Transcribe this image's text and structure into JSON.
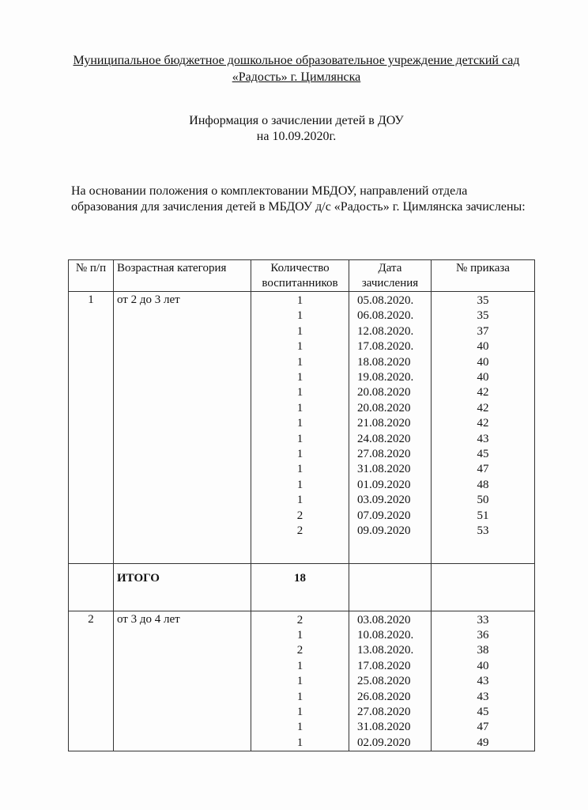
{
  "header": {
    "organization": "Муниципальное бюджетное дошкольное образовательное учреждение  детский сад «Радость» г. Цимлянска",
    "title_line1": "Информация о зачислении детей  в ДОУ",
    "title_line2": "на 10.09.2020г.",
    "intro": "На основании положения о комплектовании МБДОУ,  направлений  отдела образования для зачисления детей в МБДОУ д/с «Радость» г. Цимлянска зачислены:"
  },
  "table": {
    "columns": [
      "№ п/п",
      "Возрастная категория",
      "Количество воспитанников",
      "Дата зачисления",
      "№ приказа"
    ],
    "groups": [
      {
        "num": "1",
        "category": "от 2 до 3 лет",
        "counts": [
          "1",
          "1",
          "1",
          "1",
          "1",
          "1",
          "1",
          "1",
          "1",
          "1",
          "1",
          "1",
          "1",
          "1",
          "2",
          "2"
        ],
        "dates": [
          "05.08.2020.",
          "06.08.2020.",
          "12.08.2020.",
          "17.08.2020.",
          "18.08.2020",
          "19.08.2020.",
          "20.08.2020",
          "20.08.2020",
          "21.08.2020",
          "24.08.2020",
          "27.08.2020",
          "31.08.2020",
          "01.09.2020",
          "03.09.2020",
          "07.09.2020",
          "09.09.2020"
        ],
        "orders": [
          "35",
          "35",
          "37",
          "40",
          "40",
          "40",
          "42",
          "42",
          "42",
          "43",
          "45",
          "47",
          "48",
          "50",
          "51",
          "53"
        ]
      },
      {
        "num": "2",
        "category": "от 3 до 4 лет",
        "counts": [
          "2",
          "1",
          "2",
          "1",
          "1",
          "1",
          "1",
          "1",
          "1"
        ],
        "dates": [
          "03.08.2020",
          "10.08.2020.",
          "13.08.2020.",
          "17.08.2020",
          "25.08.2020",
          "26.08.2020",
          "27.08.2020",
          "31.08.2020",
          "02.09.2020"
        ],
        "orders": [
          "33",
          "36",
          "38",
          "40",
          "43",
          "43",
          "45",
          "47",
          "49"
        ]
      }
    ],
    "total": {
      "label": "ИТОГО",
      "value": "18"
    }
  }
}
